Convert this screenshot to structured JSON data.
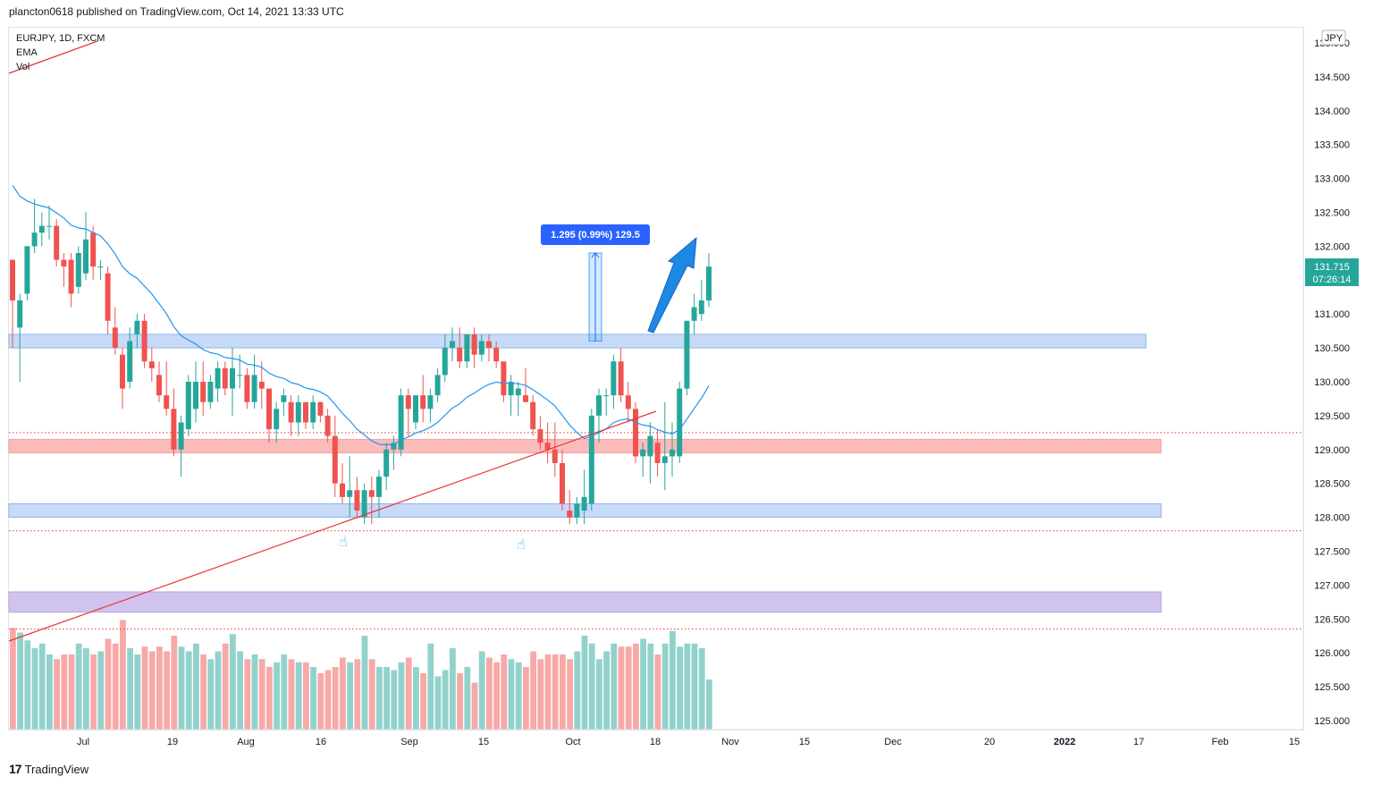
{
  "header": {
    "text": "plancton0618 published on TradingView.com, Oct 14, 2021 13:33 UTC"
  },
  "legend": {
    "symbol": "EURJPY, 1D, FXCM",
    "ema": "EMA",
    "vol": "Vol"
  },
  "footer": {
    "brand": "TradingView",
    "logo_glyph": "17"
  },
  "colors": {
    "up": "#26a69a",
    "down": "#ef5350",
    "ema": "#2196f3",
    "trendline": "#e53935"
  },
  "chart_data": {
    "type": "candlestick",
    "symbol": "EURJPY",
    "timeframe": "1D",
    "currency": "JPY",
    "price_axis": {
      "ticks": [
        "125.000",
        "125.500",
        "126.000",
        "126.500",
        "127.000",
        "127.500",
        "128.000",
        "128.500",
        "129.000",
        "129.500",
        "130.000",
        "130.500",
        "131.000",
        "131.500",
        "132.000",
        "132.500",
        "133.000",
        "133.500",
        "134.000",
        "134.500",
        "135.000"
      ],
      "ylim": [
        124.9,
        135.4
      ]
    },
    "time_axis": {
      "ticks": [
        "Jul",
        "19",
        "Aug",
        "16",
        "Sep",
        "15",
        "Oct",
        "18",
        "Nov",
        "15",
        "Dec",
        "20",
        "2022",
        "17",
        "Feb",
        "15"
      ]
    },
    "last_price": {
      "price": "131.715",
      "countdown": "07:26:14"
    },
    "measure": {
      "label": "1.295 (0.99%) 129.5",
      "from": 130.6,
      "to": 131.9
    },
    "zones": [
      {
        "from": 130.5,
        "to": 130.7,
        "color": "blue"
      },
      {
        "from": 128.95,
        "to": 129.15,
        "color": "red"
      },
      {
        "from": 128.0,
        "to": 128.2,
        "color": "blue"
      },
      {
        "from": 126.6,
        "to": 126.9,
        "color": "purple"
      }
    ],
    "dotted_levels": [
      129.25,
      127.8,
      126.35
    ],
    "candles": [
      {
        "o": 131.8,
        "h": 131.8,
        "l": 130.5,
        "c": 131.2,
        "v": 6.5
      },
      {
        "o": 130.8,
        "h": 131.3,
        "l": 130.0,
        "c": 131.2,
        "v": 6.2
      },
      {
        "o": 131.3,
        "h": 132.0,
        "l": 131.2,
        "c": 132.0,
        "v": 5.7
      },
      {
        "o": 132.0,
        "h": 132.7,
        "l": 131.9,
        "c": 132.2,
        "v": 5.2
      },
      {
        "o": 132.2,
        "h": 132.5,
        "l": 132.0,
        "c": 132.3,
        "v": 5.5
      },
      {
        "o": 132.3,
        "h": 132.6,
        "l": 132.1,
        "c": 132.3,
        "v": 4.8
      },
      {
        "o": 132.3,
        "h": 132.4,
        "l": 131.7,
        "c": 131.8,
        "v": 4.5
      },
      {
        "o": 131.8,
        "h": 131.9,
        "l": 131.4,
        "c": 131.7,
        "v": 4.8
      },
      {
        "o": 131.8,
        "h": 131.9,
        "l": 131.1,
        "c": 131.3,
        "v": 4.8
      },
      {
        "o": 131.4,
        "h": 132.0,
        "l": 131.3,
        "c": 131.9,
        "v": 5.5
      },
      {
        "o": 131.6,
        "h": 132.5,
        "l": 131.5,
        "c": 132.1,
        "v": 5.2
      },
      {
        "o": 132.2,
        "h": 132.3,
        "l": 131.5,
        "c": 131.7,
        "v": 4.8
      },
      {
        "o": 131.7,
        "h": 131.8,
        "l": 131.5,
        "c": 131.7,
        "v": 5.0
      },
      {
        "o": 131.6,
        "h": 131.7,
        "l": 130.7,
        "c": 130.9,
        "v": 5.8
      },
      {
        "o": 130.8,
        "h": 131.1,
        "l": 130.4,
        "c": 130.5,
        "v": 5.5
      },
      {
        "o": 130.4,
        "h": 130.5,
        "l": 129.6,
        "c": 129.9,
        "v": 7.0
      },
      {
        "o": 130.0,
        "h": 130.8,
        "l": 129.9,
        "c": 130.6,
        "v": 5.2
      },
      {
        "o": 130.7,
        "h": 131.0,
        "l": 130.5,
        "c": 130.9,
        "v": 4.8
      },
      {
        "o": 130.9,
        "h": 131.0,
        "l": 130.2,
        "c": 130.3,
        "v": 5.3
      },
      {
        "o": 130.3,
        "h": 130.5,
        "l": 130.0,
        "c": 130.2,
        "v": 5.0
      },
      {
        "o": 130.1,
        "h": 130.3,
        "l": 129.7,
        "c": 129.8,
        "v": 5.3
      },
      {
        "o": 129.8,
        "h": 130.3,
        "l": 129.5,
        "c": 129.6,
        "v": 5.0
      },
      {
        "o": 129.6,
        "h": 129.9,
        "l": 128.9,
        "c": 129.0,
        "v": 6.0
      },
      {
        "o": 129.0,
        "h": 129.5,
        "l": 128.6,
        "c": 129.4,
        "v": 5.3
      },
      {
        "o": 129.3,
        "h": 130.1,
        "l": 129.2,
        "c": 130.0,
        "v": 5.0
      },
      {
        "o": 129.6,
        "h": 130.3,
        "l": 129.4,
        "c": 130.0,
        "v": 5.5
      },
      {
        "o": 130.0,
        "h": 130.3,
        "l": 129.5,
        "c": 129.7,
        "v": 4.8
      },
      {
        "o": 129.7,
        "h": 130.1,
        "l": 129.6,
        "c": 130.0,
        "v": 4.5
      },
      {
        "o": 129.9,
        "h": 130.3,
        "l": 129.7,
        "c": 130.2,
        "v": 5.0
      },
      {
        "o": 130.2,
        "h": 130.3,
        "l": 129.8,
        "c": 129.9,
        "v": 5.5
      },
      {
        "o": 129.9,
        "h": 130.5,
        "l": 129.5,
        "c": 130.2,
        "v": 6.1
      },
      {
        "o": 130.1,
        "h": 130.4,
        "l": 129.9,
        "c": 130.1,
        "v": 5.0
      },
      {
        "o": 130.1,
        "h": 130.2,
        "l": 129.6,
        "c": 129.7,
        "v": 4.5
      },
      {
        "o": 129.7,
        "h": 130.4,
        "l": 129.6,
        "c": 130.1,
        "v": 4.8
      },
      {
        "o": 130.0,
        "h": 130.3,
        "l": 129.6,
        "c": 129.9,
        "v": 4.5
      },
      {
        "o": 129.9,
        "h": 129.9,
        "l": 129.1,
        "c": 129.3,
        "v": 4.0
      },
      {
        "o": 129.3,
        "h": 129.7,
        "l": 129.1,
        "c": 129.6,
        "v": 4.3
      },
      {
        "o": 129.7,
        "h": 129.9,
        "l": 129.5,
        "c": 129.8,
        "v": 4.8
      },
      {
        "o": 129.7,
        "h": 129.8,
        "l": 129.2,
        "c": 129.4,
        "v": 4.5
      },
      {
        "o": 129.4,
        "h": 129.8,
        "l": 129.2,
        "c": 129.7,
        "v": 4.3
      },
      {
        "o": 129.7,
        "h": 129.7,
        "l": 129.3,
        "c": 129.4,
        "v": 4.3
      },
      {
        "o": 129.4,
        "h": 129.8,
        "l": 129.3,
        "c": 129.7,
        "v": 4.0
      },
      {
        "o": 129.7,
        "h": 129.7,
        "l": 129.4,
        "c": 129.5,
        "v": 3.6
      },
      {
        "o": 129.5,
        "h": 129.6,
        "l": 129.1,
        "c": 129.2,
        "v": 3.8
      },
      {
        "o": 129.2,
        "h": 129.5,
        "l": 128.3,
        "c": 128.5,
        "v": 4.0
      },
      {
        "o": 128.5,
        "h": 128.8,
        "l": 128.2,
        "c": 128.3,
        "v": 4.6
      },
      {
        "o": 128.3,
        "h": 128.9,
        "l": 128.0,
        "c": 128.4,
        "v": 4.3
      },
      {
        "o": 128.4,
        "h": 128.6,
        "l": 128.0,
        "c": 128.1,
        "v": 4.5
      },
      {
        "o": 128.0,
        "h": 128.5,
        "l": 127.9,
        "c": 128.4,
        "v": 6.0
      },
      {
        "o": 128.4,
        "h": 128.6,
        "l": 127.9,
        "c": 128.3,
        "v": 4.5
      },
      {
        "o": 128.3,
        "h": 128.7,
        "l": 128.0,
        "c": 128.6,
        "v": 4.0
      },
      {
        "o": 128.6,
        "h": 129.1,
        "l": 128.4,
        "c": 129.0,
        "v": 4.0
      },
      {
        "o": 129.0,
        "h": 129.2,
        "l": 128.7,
        "c": 129.1,
        "v": 3.8
      },
      {
        "o": 129.0,
        "h": 129.9,
        "l": 128.9,
        "c": 129.8,
        "v": 4.3
      },
      {
        "o": 129.8,
        "h": 129.9,
        "l": 129.2,
        "c": 129.6,
        "v": 4.6
      },
      {
        "o": 129.4,
        "h": 129.8,
        "l": 129.3,
        "c": 129.8,
        "v": 4.0
      },
      {
        "o": 129.8,
        "h": 130.1,
        "l": 129.4,
        "c": 129.6,
        "v": 3.6
      },
      {
        "o": 129.6,
        "h": 129.9,
        "l": 129.4,
        "c": 129.8,
        "v": 5.5
      },
      {
        "o": 129.8,
        "h": 130.2,
        "l": 129.7,
        "c": 130.1,
        "v": 3.4
      },
      {
        "o": 130.1,
        "h": 130.7,
        "l": 130.0,
        "c": 130.5,
        "v": 3.8
      },
      {
        "o": 130.5,
        "h": 130.8,
        "l": 130.3,
        "c": 130.6,
        "v": 5.2
      },
      {
        "o": 130.5,
        "h": 130.8,
        "l": 130.2,
        "c": 130.3,
        "v": 3.6
      },
      {
        "o": 130.3,
        "h": 130.7,
        "l": 130.2,
        "c": 130.7,
        "v": 4.0
      },
      {
        "o": 130.7,
        "h": 130.8,
        "l": 130.2,
        "c": 130.4,
        "v": 3.0
      },
      {
        "o": 130.4,
        "h": 130.7,
        "l": 130.3,
        "c": 130.6,
        "v": 5.0
      },
      {
        "o": 130.6,
        "h": 130.7,
        "l": 130.3,
        "c": 130.5,
        "v": 4.6
      },
      {
        "o": 130.5,
        "h": 130.6,
        "l": 130.2,
        "c": 130.3,
        "v": 4.3
      },
      {
        "o": 130.3,
        "h": 130.3,
        "l": 129.7,
        "c": 129.8,
        "v": 4.8
      },
      {
        "o": 129.8,
        "h": 130.1,
        "l": 129.5,
        "c": 130.0,
        "v": 4.5
      },
      {
        "o": 129.8,
        "h": 130.0,
        "l": 129.5,
        "c": 129.9,
        "v": 4.3
      },
      {
        "o": 129.8,
        "h": 130.2,
        "l": 129.7,
        "c": 129.7,
        "v": 4.0
      },
      {
        "o": 129.7,
        "h": 129.8,
        "l": 129.2,
        "c": 129.3,
        "v": 5.0
      },
      {
        "o": 129.3,
        "h": 129.5,
        "l": 129.0,
        "c": 129.1,
        "v": 4.5
      },
      {
        "o": 129.1,
        "h": 129.4,
        "l": 128.8,
        "c": 129.0,
        "v": 4.8
      },
      {
        "o": 129.0,
        "h": 129.4,
        "l": 128.6,
        "c": 128.8,
        "v": 4.8
      },
      {
        "o": 128.8,
        "h": 129.0,
        "l": 128.1,
        "c": 128.2,
        "v": 4.8
      },
      {
        "o": 128.1,
        "h": 128.4,
        "l": 127.9,
        "c": 128.0,
        "v": 4.5
      },
      {
        "o": 128.0,
        "h": 128.3,
        "l": 127.9,
        "c": 128.2,
        "v": 5.0
      },
      {
        "o": 128.1,
        "h": 128.7,
        "l": 127.9,
        "c": 128.3,
        "v": 6.0
      },
      {
        "o": 128.2,
        "h": 129.6,
        "l": 128.1,
        "c": 129.5,
        "v": 5.5
      },
      {
        "o": 129.5,
        "h": 129.9,
        "l": 129.1,
        "c": 129.8,
        "v": 4.5
      },
      {
        "o": 129.8,
        "h": 129.9,
        "l": 129.5,
        "c": 129.8,
        "v": 5.0
      },
      {
        "o": 129.8,
        "h": 130.4,
        "l": 129.6,
        "c": 130.3,
        "v": 5.5
      },
      {
        "o": 130.3,
        "h": 130.5,
        "l": 129.7,
        "c": 129.8,
        "v": 5.3
      },
      {
        "o": 129.8,
        "h": 130.0,
        "l": 129.4,
        "c": 129.6,
        "v": 5.3
      },
      {
        "o": 129.6,
        "h": 129.7,
        "l": 128.8,
        "c": 128.9,
        "v": 5.5
      },
      {
        "o": 128.9,
        "h": 129.1,
        "l": 128.6,
        "c": 129.0,
        "v": 5.8
      },
      {
        "o": 128.9,
        "h": 129.4,
        "l": 128.5,
        "c": 129.2,
        "v": 5.5
      },
      {
        "o": 129.1,
        "h": 129.3,
        "l": 128.6,
        "c": 128.8,
        "v": 4.8
      },
      {
        "o": 128.8,
        "h": 129.7,
        "l": 128.4,
        "c": 128.9,
        "v": 5.5
      },
      {
        "o": 128.9,
        "h": 129.4,
        "l": 128.6,
        "c": 129.0,
        "v": 6.3
      },
      {
        "o": 128.9,
        "h": 130.0,
        "l": 128.8,
        "c": 129.9,
        "v": 5.3
      },
      {
        "o": 129.9,
        "h": 130.9,
        "l": 129.8,
        "c": 130.9,
        "v": 5.5
      },
      {
        "o": 130.9,
        "h": 131.3,
        "l": 130.7,
        "c": 131.1,
        "v": 5.5
      },
      {
        "o": 131.0,
        "h": 131.5,
        "l": 130.9,
        "c": 131.2,
        "v": 5.2
      },
      {
        "o": 131.2,
        "h": 131.9,
        "l": 131.1,
        "c": 131.7,
        "v": 3.2
      }
    ]
  }
}
